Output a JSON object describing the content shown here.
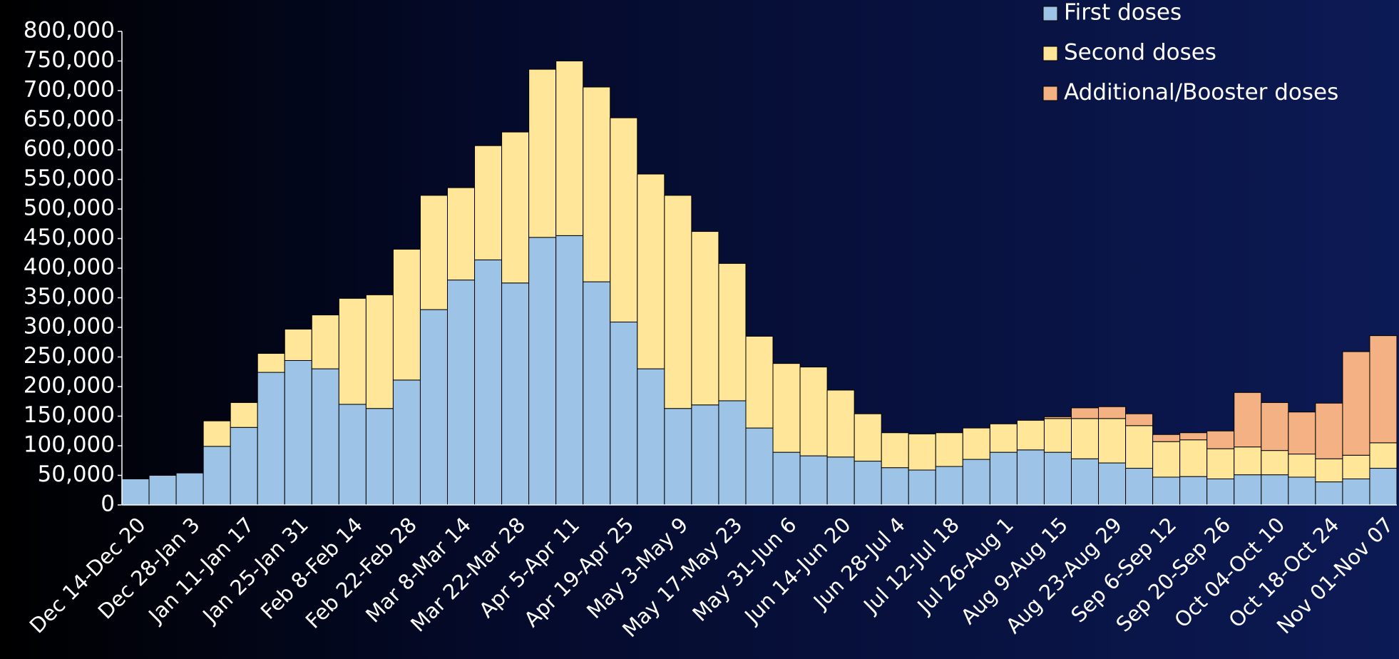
{
  "chart_data": {
    "type": "stacked_bar",
    "categories": [
      "Dec 14-Dec 20",
      null,
      "Dec 28-Jan 3",
      null,
      "Jan 11-Jan 17",
      null,
      "Jan 25-Jan 31",
      null,
      "Feb 8-Feb 14",
      null,
      "Feb 22-Feb 28",
      null,
      "Mar 8-Mar 14",
      null,
      "Mar 22-Mar 28",
      null,
      "Apr 5-Apr 11",
      null,
      "Apr 19-Apr 25",
      null,
      "May 3-May 9",
      null,
      "May 17-May 23",
      null,
      "May 31-Jun 6",
      null,
      "Jun 14-Jun 20",
      null,
      "Jun 28-Jul 4",
      null,
      "Jul 12-Jul 18",
      null,
      "Jul 26-Aug 1",
      null,
      "Aug 9-Aug 15",
      null,
      "Aug 23-Aug 29",
      null,
      "Sep 6-Sep 12",
      null,
      "Sep 20-Sep 26",
      null,
      "Oct 04-Oct 10",
      null,
      "Oct 18-Oct 24",
      null,
      "Nov 01-Nov 07"
    ],
    "series": [
      {
        "name": "First doses",
        "color": "#9dc3e6",
        "values": [
          44000,
          50000,
          54000,
          99000,
          131000,
          224000,
          244000,
          230000,
          170000,
          163000,
          211000,
          330000,
          380000,
          414000,
          375000,
          452000,
          455000,
          377000,
          309000,
          230000,
          163000,
          169000,
          176000,
          130000,
          89000,
          83000,
          81000,
          74000,
          63000,
          59000,
          65000,
          77000,
          89000,
          93000,
          89000,
          78000,
          71000,
          62000,
          47000,
          48000,
          44000,
          51000,
          51000,
          47000,
          39000,
          44000,
          62000
        ]
      },
      {
        "name": "Second doses",
        "color": "#ffe699",
        "values": [
          0,
          0,
          0,
          43000,
          42000,
          32000,
          53000,
          91000,
          179000,
          192000,
          221000,
          193000,
          156000,
          193000,
          255000,
          284000,
          295000,
          329000,
          345000,
          329000,
          360000,
          293000,
          232000,
          155000,
          150000,
          150000,
          113000,
          80000,
          59000,
          61000,
          57000,
          53000,
          48000,
          50000,
          57000,
          68000,
          75000,
          72000,
          60000,
          62000,
          51000,
          47000,
          41000,
          39000,
          39000,
          40000,
          43000
        ]
      },
      {
        "name": "Additional/Booster doses",
        "color": "#f4b183",
        "values": [
          0,
          0,
          0,
          0,
          0,
          0,
          0,
          0,
          0,
          0,
          0,
          0,
          0,
          0,
          0,
          0,
          0,
          0,
          0,
          0,
          0,
          0,
          0,
          0,
          0,
          0,
          0,
          0,
          0,
          0,
          0,
          0,
          0,
          0,
          3000,
          18000,
          20000,
          20000,
          12000,
          12000,
          30000,
          92000,
          81000,
          71000,
          94000,
          175000,
          181000
        ]
      }
    ],
    "ylim": [
      0,
      800000
    ],
    "yticks": [
      0,
      {
        "value": 50000,
        "label": "50,000"
      },
      {
        "value": 100000,
        "label": "100,000"
      },
      {
        "value": 150000,
        "label": "150,000"
      },
      {
        "value": 200000,
        "label": "200,000"
      },
      {
        "value": 250000,
        "label": "250,000"
      },
      {
        "value": 300000,
        "label": "300,000"
      },
      {
        "value": 350000,
        "label": "350,000"
      },
      {
        "value": 400000,
        "label": "400,000"
      },
      {
        "value": 450000,
        "label": "450,000"
      },
      {
        "value": 500000,
        "label": "500,000"
      },
      {
        "value": 550000,
        "label": "550,000"
      },
      {
        "value": 600000,
        "label": "600,000"
      },
      {
        "value": 650000,
        "label": "650,000"
      },
      {
        "value": 700000,
        "label": "700,000"
      },
      {
        "value": 750000,
        "label": "750,000"
      },
      {
        "value": 800000,
        "label": "800,000"
      }
    ],
    "legend": "upper right"
  }
}
